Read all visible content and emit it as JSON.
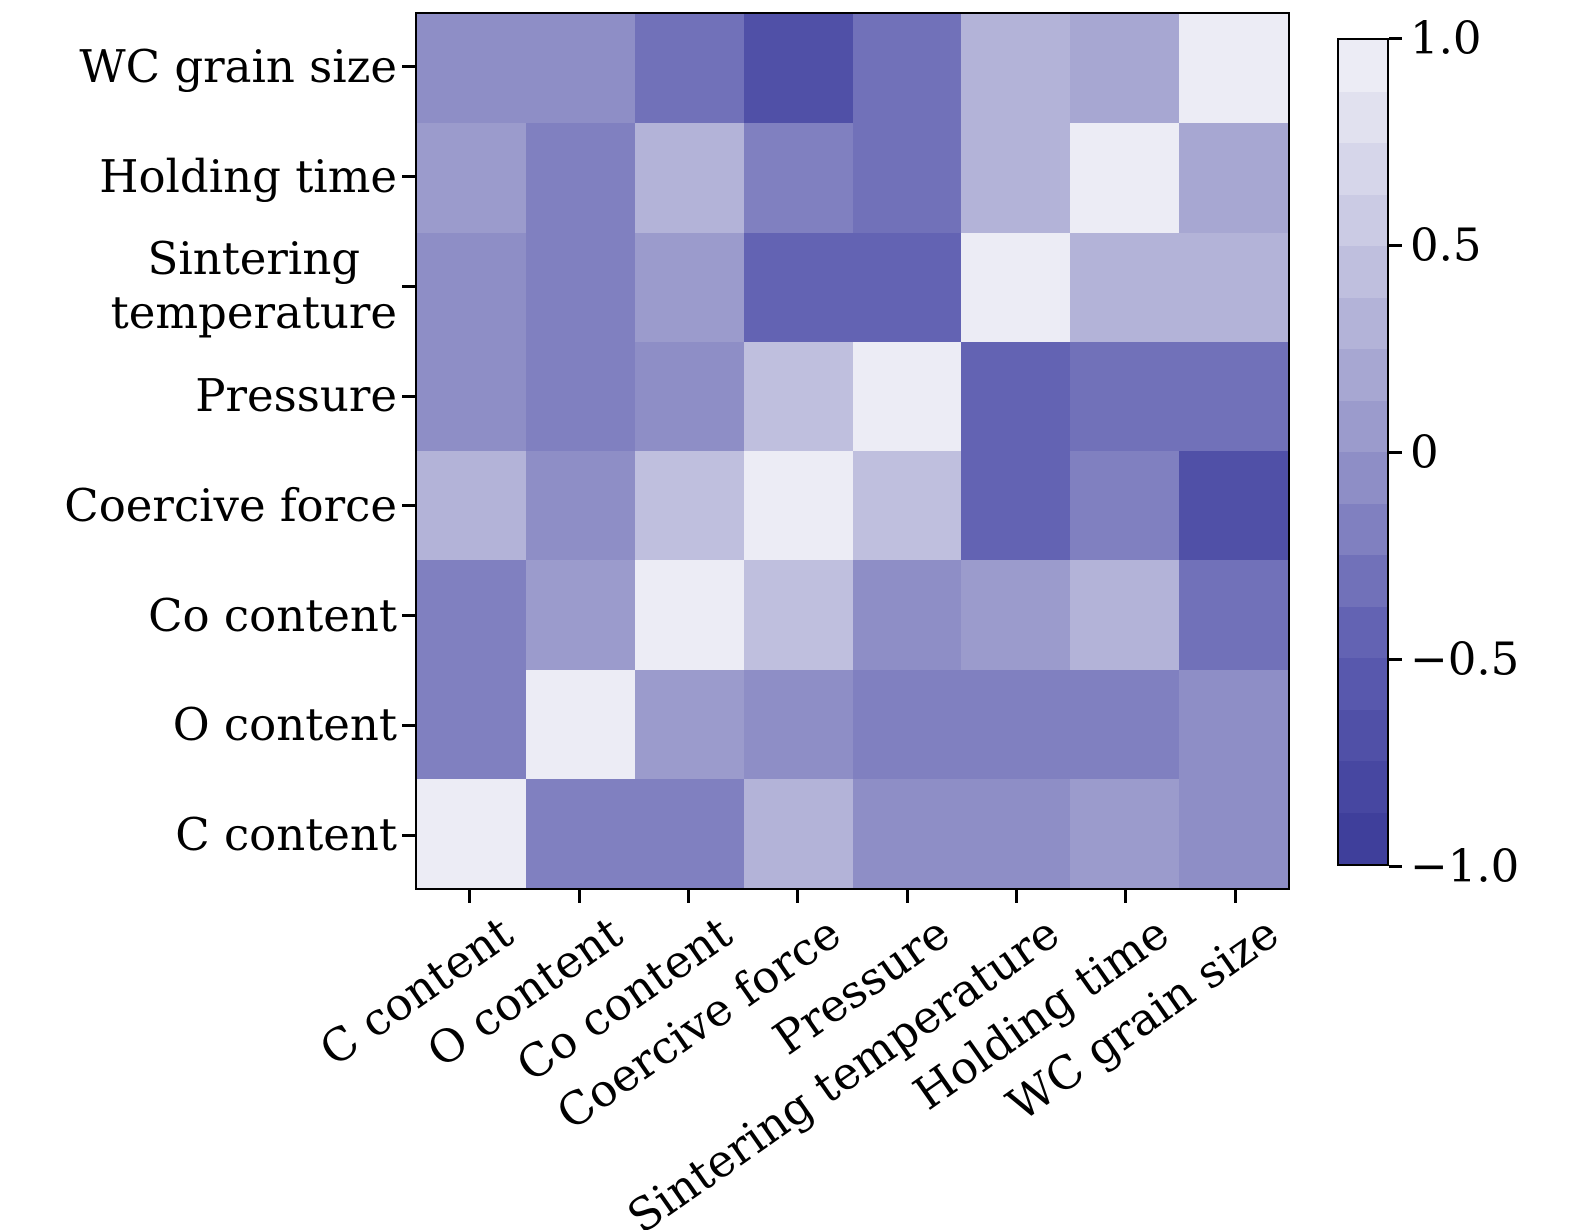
{
  "figure": {
    "background_color": "#ffffff",
    "axis_color": "#000000",
    "text_color": "#000000"
  },
  "chart_data": {
    "type": "heatmap",
    "title": "",
    "xlabel": "",
    "ylabel": "",
    "x_tick_labels": [
      "C content",
      "O content",
      "Co content",
      "Coercive force",
      "Pressure",
      "Sintering temperature",
      "Holding time",
      "WC grain size"
    ],
    "y_tick_labels": [
      "WC grain size",
      "Holding time",
      "Sintering\ntemperature",
      "Pressure",
      "Coercive force",
      "Co content",
      "O content",
      "C content"
    ],
    "matrix_rows_top_to_bottom_match_y_tick_labels": true,
    "matrix_cols_left_to_right_match_x_tick_labels": true,
    "matrix": [
      [
        -0.05,
        -0.05,
        -0.3,
        -0.65,
        -0.35,
        0.35,
        0.2,
        1.0
      ],
      [
        0.0,
        -0.2,
        0.3,
        -0.15,
        -0.3,
        0.35,
        1.0,
        0.2
      ],
      [
        -0.1,
        -0.2,
        0.0,
        -0.45,
        -0.45,
        1.0,
        0.35,
        0.35
      ],
      [
        -0.05,
        -0.25,
        -0.05,
        0.4,
        1.0,
        -0.45,
        -0.3,
        -0.35
      ],
      [
        0.35,
        -0.05,
        0.45,
        1.0,
        0.4,
        -0.45,
        -0.15,
        -0.65
      ],
      [
        -0.15,
        0.05,
        1.0,
        0.45,
        -0.05,
        0.0,
        0.3,
        -0.3
      ],
      [
        -0.25,
        1.0,
        0.05,
        -0.05,
        -0.25,
        -0.2,
        -0.2,
        -0.05
      ],
      [
        1.0,
        -0.25,
        -0.15,
        0.35,
        -0.05,
        -0.1,
        0.0,
        -0.05
      ]
    ],
    "vmin": -1.0,
    "vmax": 1.0,
    "grid": false,
    "colorbar": {
      "position": "right",
      "tick_labels": [
        "1.0",
        "0.5",
        "0",
        "−0.5",
        "−1.0"
      ],
      "tick_values": [
        1.0,
        0.5,
        0.0,
        -0.5,
        -1.0
      ],
      "levels": 16,
      "gradient_stops": [
        {
          "value": 1.0,
          "color": "#f1f1f8"
        },
        {
          "value": 0.5,
          "color": "#c5c5e1"
        },
        {
          "value": 0.0,
          "color": "#9595c9"
        },
        {
          "value": -0.5,
          "color": "#5c5cb0"
        },
        {
          "value": -1.0,
          "color": "#3b3b98"
        }
      ]
    }
  }
}
